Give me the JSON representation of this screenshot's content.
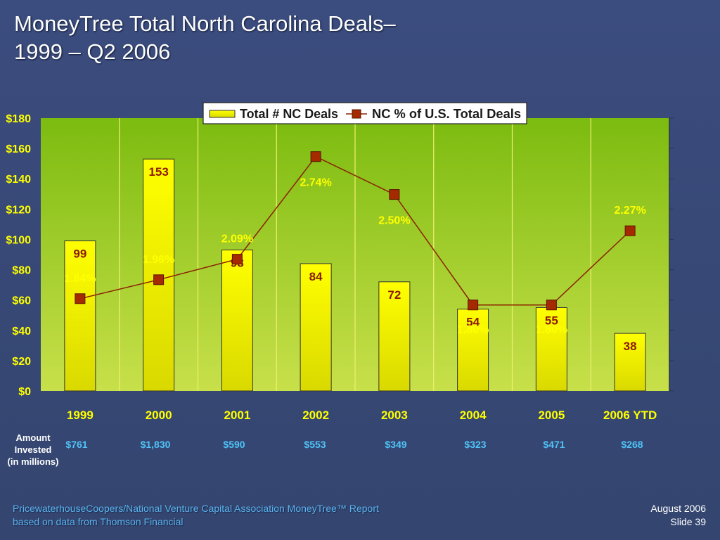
{
  "slide": {
    "title_line1": "MoneyTree Total North Carolina Deals–",
    "title_line2": "1999 – Q2 2006",
    "amount_label": [
      "Amount",
      "Invested",
      "(in millions)"
    ],
    "amounts": [
      "$761",
      "$1,830",
      "$590",
      "$553",
      "$349",
      "$323",
      "$471",
      "$268"
    ],
    "footer_left": [
      "PricewaterhouseCoopers/National Venture Capital Association MoneyTree™ Report",
      "based on data from Thomson Financial"
    ],
    "footer_right": [
      "August 2006",
      "Slide 39"
    ]
  },
  "colors": {
    "background": "#3b4c7e",
    "plot_area": "#8cc21a",
    "bar_top": "#ffff00",
    "bar_bottom": "#d9d900",
    "line": "#8b2000",
    "marker": "#a52a00",
    "deal_label": "#8b1a00",
    "pct_label": "#ffff00",
    "axis_text": "#ffff00",
    "amount_text": "#4fc3f7"
  },
  "chart_data": {
    "type": "bar",
    "categories": [
      "1999",
      "2000",
      "2001",
      "2002",
      "2003",
      "2004",
      "2005",
      "2006 YTD"
    ],
    "series": [
      {
        "name": "Total # NC Deals",
        "type": "bar",
        "values": [
          99,
          153,
          93,
          84,
          72,
          54,
          55,
          38
        ]
      },
      {
        "name": "NC % of U.S. Total Deals",
        "type": "line",
        "values": [
          1.84,
          1.96,
          2.09,
          2.74,
          2.5,
          1.8,
          1.8,
          2.27
        ],
        "labels": [
          "1.84%",
          "1.96%",
          "2.09%",
          "2.74%",
          "2.50%",
          "1.80%",
          "1.80%",
          "2.27%"
        ]
      }
    ],
    "y_ticks": [
      "$0",
      "$20",
      "$40",
      "$60",
      "$80",
      "$100",
      "$120",
      "$140",
      "$160",
      "$180"
    ],
    "ylim": [
      0,
      180
    ],
    "legend_position": "top-right",
    "grid": "vertical"
  }
}
